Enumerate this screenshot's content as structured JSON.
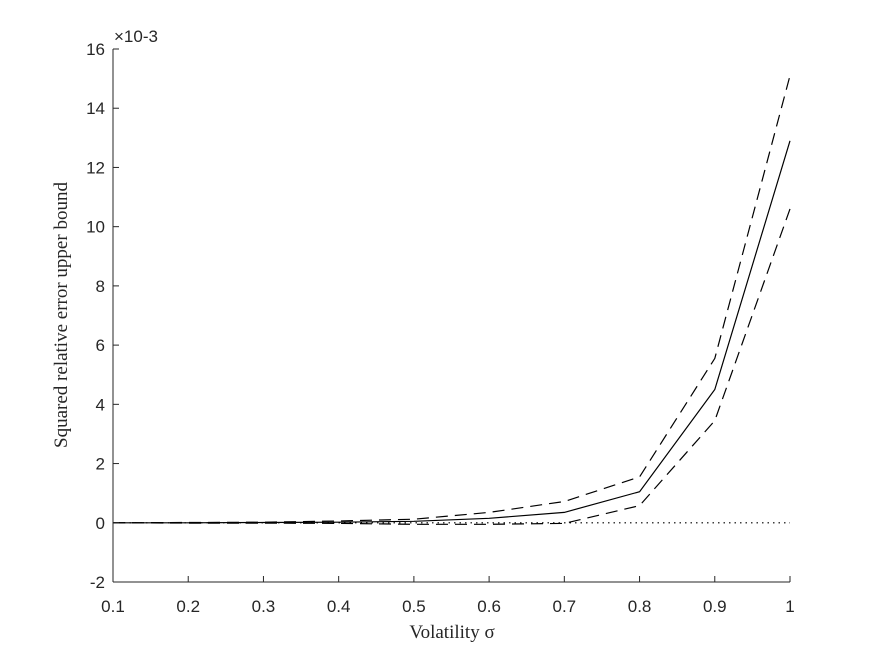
{
  "chart_data": {
    "type": "line",
    "xlabel": "Volatility σ",
    "ylabel": "Squared relative error upper bound",
    "y_exponent": "×10-3",
    "xlim": [
      0.1,
      1
    ],
    "ylim": [
      -2,
      16
    ],
    "x_ticks": [
      0.1,
      0.2,
      0.3,
      0.4,
      0.5,
      0.6,
      0.7,
      0.8,
      0.9,
      1
    ],
    "x_tick_labels": [
      "0.1",
      "0.2",
      "0.3",
      "0.4",
      "0.5",
      "0.6",
      "0.7",
      "0.8",
      "0.9",
      "1"
    ],
    "y_ticks": [
      -2,
      0,
      2,
      4,
      6,
      8,
      10,
      12,
      14,
      16
    ],
    "y_tick_labels": [
      "-2",
      "0",
      "2",
      "4",
      "6",
      "8",
      "10",
      "12",
      "14",
      "16"
    ],
    "grid": false,
    "x": [
      0.1,
      0.2,
      0.3,
      0.4,
      0.5,
      0.6,
      0.7,
      0.8,
      0.9,
      1.0
    ],
    "series": [
      {
        "style": "solid",
        "values": [
          0,
          0,
          0.01,
          0.02,
          0.05,
          0.15,
          0.35,
          1.05,
          4.5,
          12.9
        ]
      },
      {
        "style": "dashed",
        "values": [
          0,
          0.01,
          0.02,
          0.06,
          0.12,
          0.35,
          0.72,
          1.55,
          5.55,
          15.1
        ]
      },
      {
        "style": "dashed",
        "values": [
          0,
          -0.01,
          -0.01,
          -0.02,
          -0.05,
          -0.05,
          -0.02,
          0.58,
          3.45,
          10.6
        ]
      },
      {
        "style": "dotted",
        "values": [
          0,
          0,
          0,
          0,
          0,
          0,
          0,
          0,
          0,
          0
        ]
      }
    ]
  }
}
